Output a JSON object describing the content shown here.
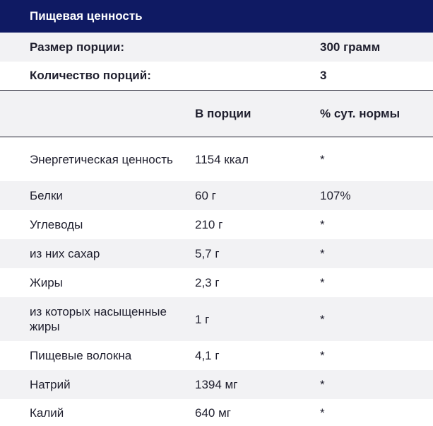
{
  "title": "Пищевая ценность",
  "serving": {
    "label": "Размер порции:",
    "value": "300 грамм"
  },
  "servings_count": {
    "label": "Количество порций:",
    "value": "3"
  },
  "columns": {
    "per_serving": "В порции",
    "daily_value": "% сут. нормы"
  },
  "rows": [
    {
      "name": "Энергетическая ценность",
      "per_serving": "1154 ккал",
      "daily": "*"
    },
    {
      "name": "Белки",
      "per_serving": "60 г",
      "daily": "107%"
    },
    {
      "name": "Углеводы",
      "per_serving": "210 г",
      "daily": "*"
    },
    {
      "name": "из них сахар",
      "per_serving": "5,7 г",
      "daily": "*"
    },
    {
      "name": "Жиры",
      "per_serving": "2,3 г",
      "daily": "*"
    },
    {
      "name": "из которых насыщенные жиры",
      "per_serving": "1 г",
      "daily": "*"
    },
    {
      "name": "Пищевые волокна",
      "per_serving": "4,1 г",
      "daily": "*"
    },
    {
      "name": "Натрий",
      "per_serving": "1394 мг",
      "daily": "*"
    },
    {
      "name": "Калий",
      "per_serving": "640 мг",
      "daily": "*"
    }
  ]
}
